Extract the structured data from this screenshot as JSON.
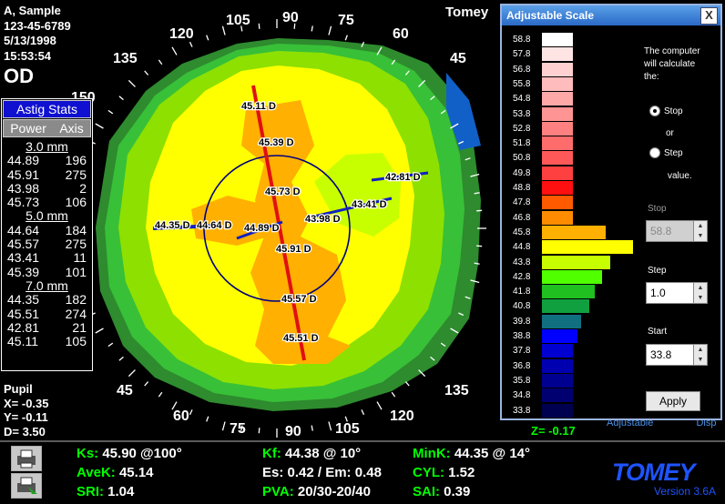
{
  "patient": {
    "name": "A, Sample",
    "id": "123-45-6789",
    "date": "5/13/1998",
    "time": "15:53:54",
    "eye": "OD"
  },
  "brand_top": "Tomey",
  "map": {
    "axis_labels": [
      "135",
      "120",
      "105",
      "90",
      "75",
      "60",
      "45",
      "150",
      "45",
      "60",
      "75",
      "90",
      "105",
      "120",
      "135"
    ],
    "readings": [
      "45.11 D",
      "45.39 D",
      "45.73 D",
      "44.35 D",
      "44.64 D",
      "44.89 D",
      "43.98 D",
      "43.41 D",
      "42.81 D",
      "45.91 D",
      "45.57 D",
      "45.51 D"
    ]
  },
  "astig": {
    "btn_stats": "Astig Stats",
    "btn_power": "Power",
    "btn_axis": "Axis",
    "sections": [
      {
        "header": "3.0 mm",
        "rows": [
          [
            "44.89",
            "196"
          ],
          [
            "45.91",
            "275"
          ],
          [
            "43.98",
            "2"
          ],
          [
            "45.73",
            "106"
          ]
        ]
      },
      {
        "header": "5.0 mm",
        "rows": [
          [
            "44.64",
            "184"
          ],
          [
            "45.57",
            "275"
          ],
          [
            "43.41",
            "11"
          ],
          [
            "45.39",
            "101"
          ]
        ]
      },
      {
        "header": "7.0 mm",
        "rows": [
          [
            "44.35",
            "182"
          ],
          [
            "45.51",
            "274"
          ],
          [
            "42.81",
            "21"
          ],
          [
            "45.11",
            "105"
          ]
        ]
      }
    ]
  },
  "pupil": {
    "title": "Pupil",
    "x": "X= -0.35",
    "y": "Y= -0.11",
    "d": "D=  3.50"
  },
  "z": "Z= -0.17",
  "hidden_links": [
    "Adjustable",
    "Disp"
  ],
  "metrics": {
    "ks_l": "Ks:",
    "ks_v": "45.90 @100°",
    "kf_l": "Kf:",
    "kf_v": "44.38 @ 10°",
    "mink_l": "MinK:",
    "mink_v": "44.35 @ 14°",
    "avek_l": "AveK:",
    "avek_v": "45.14",
    "es_l": "Es: 0.42 / Em: 0.48",
    "cyl_l": "CYL:",
    "cyl_v": "1.52",
    "sri_l": "SRI:",
    "sri_v": "1.04",
    "pva_l": "PVA:",
    "pva_v": "20/30-20/40",
    "sai_l": "SAI:",
    "sai_v": "0.39"
  },
  "logo": "TOMEY",
  "version": "Version 3.6A",
  "dialog": {
    "title": "Adjustable Scale",
    "close": "X",
    "scale": [
      {
        "v": "58.8",
        "c": "#ffffff",
        "h": 0
      },
      {
        "v": "57.8",
        "c": "#ffe4e4",
        "h": 0
      },
      {
        "v": "56.8",
        "c": "#ffd0d0",
        "h": 0
      },
      {
        "v": "55.8",
        "c": "#ffbcbc",
        "h": 0
      },
      {
        "v": "54.8",
        "c": "#ffa8a8",
        "h": 0
      },
      {
        "v": "53.8",
        "c": "#ff9494",
        "h": 0
      },
      {
        "v": "52.8",
        "c": "#ff8080",
        "h": 0
      },
      {
        "v": "51.8",
        "c": "#ff6c6c",
        "h": 0
      },
      {
        "v": "50.8",
        "c": "#ff5858",
        "h": 0
      },
      {
        "v": "49.8",
        "c": "#ff4040",
        "h": 0
      },
      {
        "v": "48.8",
        "c": "#ff1010",
        "h": 0
      },
      {
        "v": "47.8",
        "c": "#ff5a00",
        "h": 0
      },
      {
        "v": "46.8",
        "c": "#ff8c00",
        "h": 0
      },
      {
        "v": "45.8",
        "c": "#ffb000",
        "h": 0.55
      },
      {
        "v": "44.8",
        "c": "#ffff00",
        "h": 1.0
      },
      {
        "v": "43.8",
        "c": "#c8ff00",
        "h": 0.62
      },
      {
        "v": "42.8",
        "c": "#50ff00",
        "h": 0.48
      },
      {
        "v": "41.8",
        "c": "#20c020",
        "h": 0.36
      },
      {
        "v": "40.8",
        "c": "#10a040",
        "h": 0.28
      },
      {
        "v": "39.8",
        "c": "#107080",
        "h": 0.14
      },
      {
        "v": "38.8",
        "c": "#0000ff",
        "h": 0.07
      },
      {
        "v": "37.8",
        "c": "#0000d0",
        "h": 0
      },
      {
        "v": "36.8",
        "c": "#0000b0",
        "h": 0
      },
      {
        "v": "35.8",
        "c": "#000090",
        "h": 0
      },
      {
        "v": "34.8",
        "c": "#000070",
        "h": 0
      },
      {
        "v": "33.8",
        "c": "#000050",
        "h": 0
      }
    ],
    "calc_text": [
      "The computer",
      "will calculate",
      "the:"
    ],
    "opt_stop": "Stop",
    "or": "or",
    "opt_step": "Step",
    "value": "value.",
    "stop_label": "Stop",
    "stop_value": "58.8",
    "step_label": "Step",
    "step_value": "1.0",
    "start_label": "Start",
    "start_value": "33.8",
    "apply": "Apply"
  }
}
